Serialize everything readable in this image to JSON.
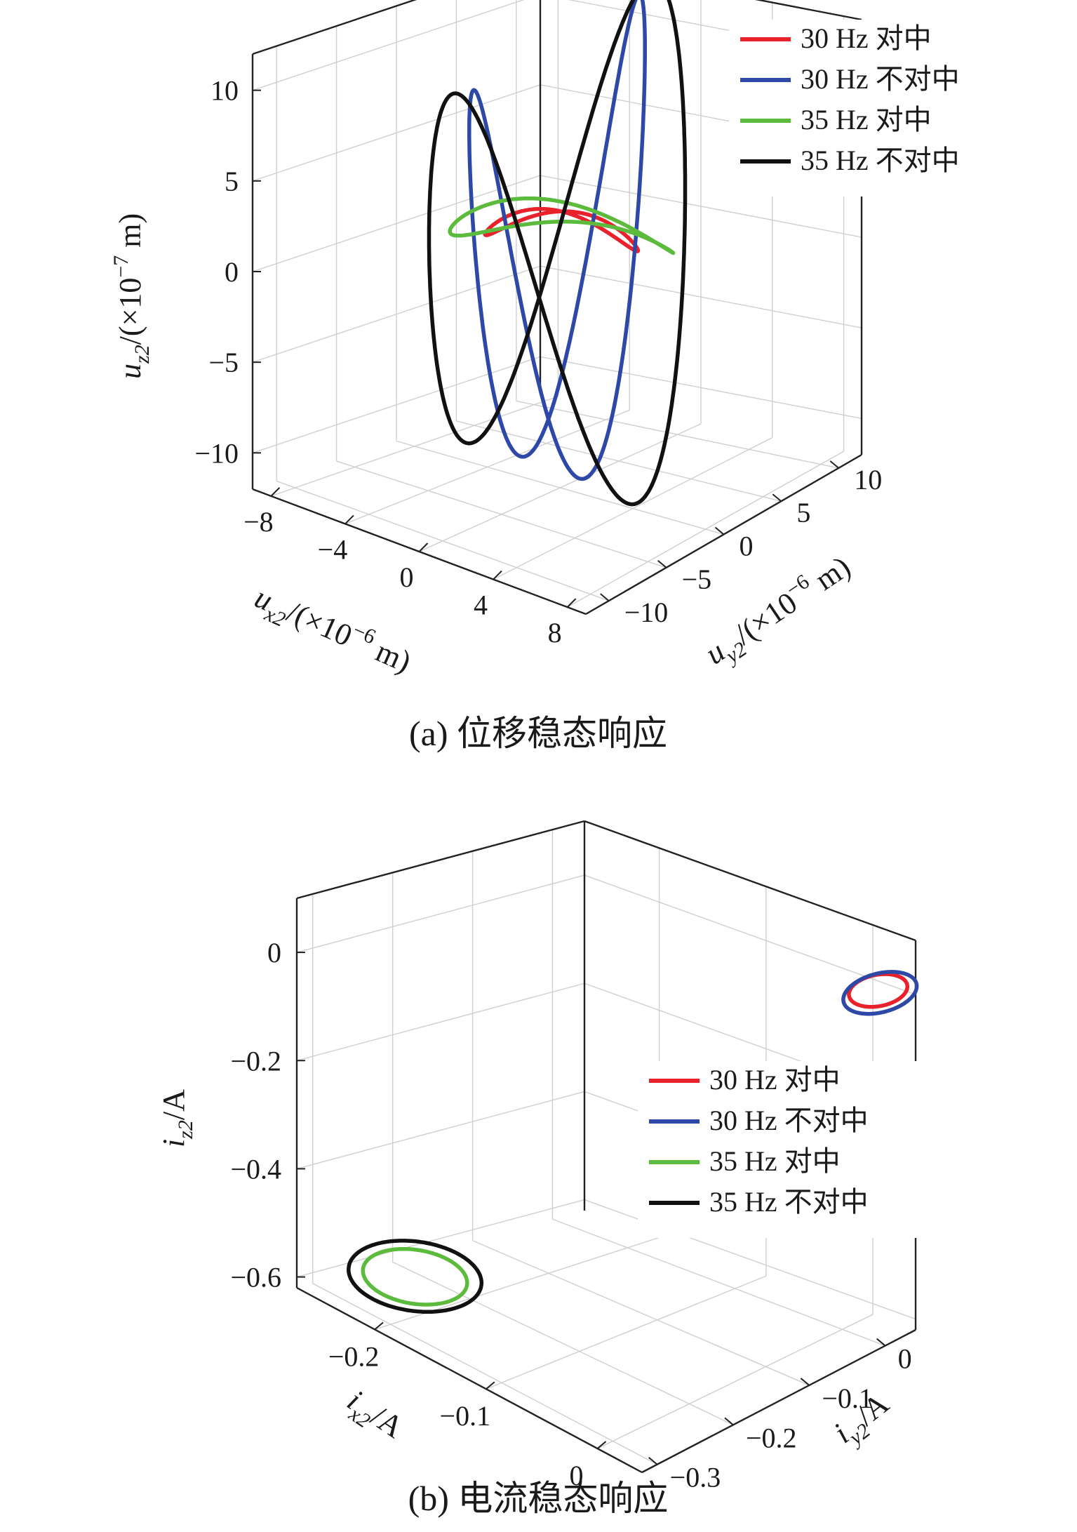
{
  "chart_data": [
    {
      "type": "line",
      "caption": "(a) 位移稳态响应",
      "xlabel": "u_x2/(×10^-6 m)",
      "xlabel_parts": {
        "var": "u",
        "sub": "x2",
        "pre": "/(×10",
        "sup": "−6",
        "post": " m)"
      },
      "ylabel_parts": {
        "var": "u",
        "sub": "y2",
        "pre": "/(×10",
        "sup": "−6",
        "post": " m)"
      },
      "zlabel_parts": {
        "var": "u",
        "sub": "z2",
        "pre": "/(×10",
        "sup": "−7",
        "post": " m)"
      },
      "x_ticks": [
        "−8",
        "−4",
        "0",
        "4",
        "8"
      ],
      "y_ticks": [
        "−10",
        "−5",
        "0",
        "5",
        "10"
      ],
      "z_ticks": [
        "−10",
        "−5",
        "0",
        "5",
        "10"
      ],
      "xlim": [
        -9,
        9
      ],
      "ylim": [
        -12,
        12
      ],
      "zlim": [
        -12,
        12
      ],
      "grid": true,
      "legend_position": "top-right",
      "series": [
        {
          "name": "30 Hz 对中",
          "color": "#e8212b",
          "ax": 3.0,
          "ay": 4.2,
          "az": 3.4,
          "zoff": 0.4,
          "phase": 1.2,
          "rx": 0.0,
          "ry": 0.0
        },
        {
          "name": "30 Hz 不对中",
          "color": "#2e48a8",
          "ax": 1.6,
          "ay": 7.2,
          "az": 11.7,
          "zoff": 0.0,
          "phase": 0.0,
          "rx": 5.0,
          "ry": 5.6
        },
        {
          "name": "35 Hz 对中",
          "color": "#5cbb3c",
          "ax": 4.8,
          "ay": 5.8,
          "az": 3.8,
          "zoff": 0.4,
          "phase": 1.25,
          "rx": 0.0,
          "ry": 0.0
        },
        {
          "name": "35 Hz 不对中",
          "color": "#111111",
          "ax": 4.4,
          "ay": 8.6,
          "az": 12.0,
          "zoff": 0.0,
          "phase": 0.0,
          "rx": 6.0,
          "ry": 6.8
        }
      ]
    },
    {
      "type": "line",
      "caption": "(b) 电流稳态响应",
      "xlabel": "i_x2/A",
      "xlabel_parts": {
        "var": "i",
        "sub": "x2",
        "pre": "/A",
        "sup": "",
        "post": ""
      },
      "ylabel_parts": {
        "var": "i",
        "sub": "y2",
        "pre": "/A",
        "sup": "",
        "post": ""
      },
      "zlabel_parts": {
        "var": "i",
        "sub": "z2",
        "pre": "/A",
        "sup": "",
        "post": ""
      },
      "x_ticks": [
        "−0.2",
        "−0.1",
        "0"
      ],
      "y_ticks": [
        "−0.3",
        "−0.2",
        "−0.1",
        "0"
      ],
      "z_ticks": [
        "−0.6",
        "−0.4",
        "−0.2",
        "0"
      ],
      "xlim": [
        -0.27,
        0.04
      ],
      "ylim": [
        -0.32,
        0.04
      ],
      "zlim": [
        -0.62,
        0.1
      ],
      "grid": true,
      "legend_position": "center-right",
      "series": [
        {
          "name": "30 Hz 对中",
          "color": "#e8212b",
          "cx": 0.02,
          "cy": 0.02,
          "cz": 0.0,
          "ax": 0.018,
          "ay": 0.028,
          "az": 0.006
        },
        {
          "name": "30 Hz 不对中",
          "color": "#2e48a8",
          "cx": 0.021,
          "cy": 0.021,
          "cz": -0.004,
          "ax": 0.022,
          "ay": 0.036,
          "az": 0.009
        },
        {
          "name": "35 Hz 对中",
          "color": "#5cbb3c",
          "cx": -0.215,
          "cy": -0.245,
          "cz": -0.594,
          "ax": 0.038,
          "ay": 0.04,
          "az": 0.006
        },
        {
          "name": "35 Hz 不对中",
          "color": "#111111",
          "cx": -0.215,
          "cy": -0.245,
          "cz": -0.593,
          "ax": 0.048,
          "ay": 0.052,
          "az": 0.008
        }
      ]
    }
  ]
}
